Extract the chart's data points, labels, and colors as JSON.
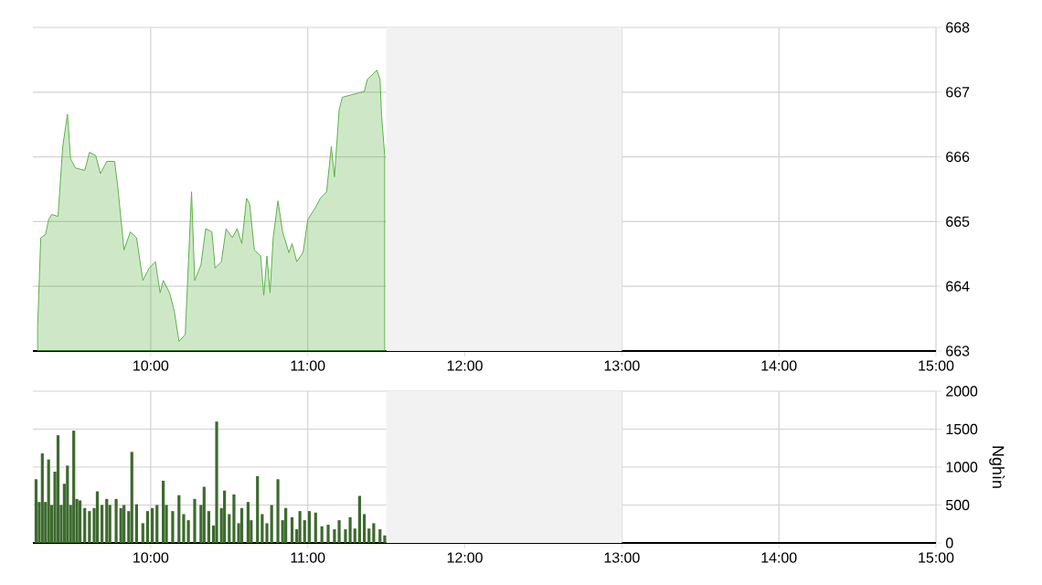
{
  "chart_data": [
    {
      "type": "area",
      "color": "#5cb346",
      "x": [
        9.28,
        9.3,
        9.33,
        9.35,
        9.37,
        9.41,
        9.44,
        9.47,
        9.49,
        9.52,
        9.58,
        9.61,
        9.65,
        9.68,
        9.72,
        9.77,
        9.79,
        9.83,
        9.87,
        9.91,
        9.95,
        9.99,
        10.03,
        10.06,
        10.08,
        10.12,
        10.15,
        10.18,
        10.22,
        10.26,
        10.28,
        10.32,
        10.35,
        10.39,
        10.41,
        10.45,
        10.48,
        10.52,
        10.55,
        10.58,
        10.61,
        10.63,
        10.66,
        10.7,
        10.72,
        10.74,
        10.76,
        10.78,
        10.81,
        10.84,
        10.88,
        10.9,
        10.93,
        10.97,
        11.0,
        11.05,
        11.08,
        11.12,
        11.15,
        11.17,
        11.2,
        11.22,
        11.28,
        11.36,
        11.38,
        11.42,
        11.44,
        11.46,
        11.47,
        11.49
      ],
      "values": [
        663.36,
        664.75,
        664.8,
        665.03,
        665.11,
        665.08,
        666.16,
        666.66,
        665.97,
        665.83,
        665.79,
        666.07,
        666.02,
        665.74,
        665.93,
        665.93,
        665.55,
        664.56,
        664.84,
        664.75,
        664.09,
        664.28,
        664.38,
        663.9,
        664.09,
        663.9,
        663.62,
        663.15,
        663.25,
        665.46,
        664.09,
        664.33,
        664.89,
        664.84,
        664.28,
        664.38,
        664.89,
        664.75,
        664.89,
        664.66,
        665.36,
        665.27,
        664.56,
        664.47,
        663.86,
        664.47,
        663.9,
        664.75,
        665.32,
        664.84,
        664.52,
        664.66,
        664.38,
        664.52,
        665.03,
        665.22,
        665.36,
        665.46,
        666.16,
        665.69,
        666.73,
        666.92,
        666.96,
        667.01,
        667.2,
        667.29,
        667.34,
        667.2,
        666.64,
        666.02
      ],
      "xlim": [
        9.25,
        15
      ],
      "ylim": [
        663,
        668
      ],
      "xticks": [
        {
          "value": 10,
          "label": "10:00"
        },
        {
          "value": 11,
          "label": "11:00"
        },
        {
          "value": 12,
          "label": "12:00"
        },
        {
          "value": 13,
          "label": "13:00"
        },
        {
          "value": 14,
          "label": "14:00"
        },
        {
          "value": 15,
          "label": "15:00"
        }
      ],
      "yticks": [
        663,
        664,
        665,
        666,
        667,
        668
      ],
      "grid": true,
      "bands": [
        {
          "axis": "x",
          "from": 11.5,
          "to": 13,
          "color": "#f2f2f2"
        }
      ]
    },
    {
      "type": "bar",
      "color": "#3d6b2e",
      "ylabel": "Nghìn",
      "x": [
        9.27,
        9.29,
        9.31,
        9.33,
        9.35,
        9.37,
        9.39,
        9.41,
        9.43,
        9.45,
        9.47,
        9.49,
        9.51,
        9.53,
        9.55,
        9.58,
        9.61,
        9.64,
        9.66,
        9.69,
        9.72,
        9.74,
        9.78,
        9.81,
        9.83,
        9.86,
        9.88,
        9.91,
        9.95,
        9.98,
        10.01,
        10.04,
        10.08,
        10.1,
        10.14,
        10.18,
        10.21,
        10.24,
        10.28,
        10.32,
        10.34,
        10.37,
        10.4,
        10.42,
        10.45,
        10.47,
        10.5,
        10.53,
        10.56,
        10.58,
        10.62,
        10.64,
        10.68,
        10.71,
        10.74,
        10.77,
        10.81,
        10.84,
        10.86,
        10.9,
        10.93,
        10.95,
        10.98,
        11.01,
        11.05,
        11.09,
        11.13,
        11.17,
        11.2,
        11.24,
        11.27,
        11.3,
        11.33,
        11.36,
        11.39,
        11.42,
        11.46,
        11.49
      ],
      "values": [
        840,
        540,
        1180,
        540,
        1100,
        500,
        940,
        1420,
        500,
        780,
        1020,
        500,
        1480,
        580,
        560,
        460,
        420,
        460,
        680,
        500,
        580,
        500,
        580,
        460,
        500,
        420,
        1200,
        510,
        260,
        420,
        460,
        500,
        820,
        500,
        420,
        630,
        380,
        300,
        580,
        500,
        740,
        420,
        230,
        1600,
        460,
        690,
        380,
        640,
        260,
        460,
        540,
        300,
        880,
        380,
        260,
        500,
        840,
        300,
        460,
        340,
        180,
        420,
        300,
        420,
        400,
        220,
        240,
        180,
        300,
        180,
        340,
        190,
        620,
        380,
        190,
        260,
        180,
        100
      ],
      "xlim": [
        9.25,
        15
      ],
      "ylim": [
        0,
        2000
      ],
      "xticks": [
        {
          "value": 10,
          "label": "10:00"
        },
        {
          "value": 11,
          "label": "11:00"
        },
        {
          "value": 12,
          "label": "12:00"
        },
        {
          "value": 13,
          "label": "13:00"
        },
        {
          "value": 14,
          "label": "14:00"
        },
        {
          "value": 15,
          "label": "15:00"
        }
      ],
      "yticks": [
        0,
        500,
        1000,
        1500,
        2000
      ],
      "grid": true,
      "bands": [
        {
          "axis": "x",
          "from": 11.5,
          "to": 13,
          "color": "#f2f2f2"
        }
      ]
    }
  ]
}
